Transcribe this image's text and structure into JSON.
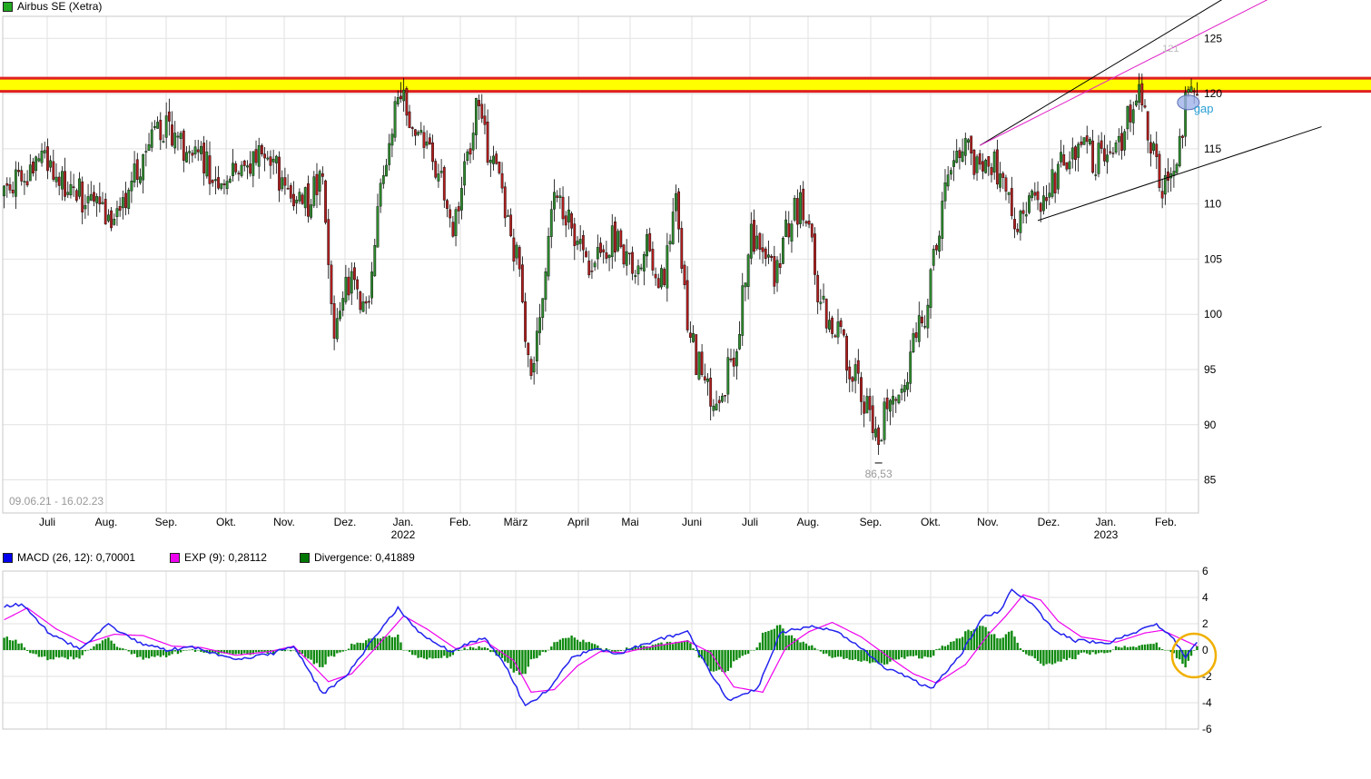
{
  "header": {
    "title": "Airbus SE (Xetra)",
    "title_color": "#22aa22"
  },
  "chart_data": [
    {
      "type": "candlestick",
      "title": "Airbus SE (Xetra)",
      "date_range": "09.06.21 - 16.02.23",
      "ylim": [
        82,
        127
      ],
      "y_ticks": [
        85,
        90,
        95,
        100,
        105,
        110,
        115,
        120,
        125
      ],
      "x_labels": [
        {
          "label": "Juli"
        },
        {
          "label": "Aug."
        },
        {
          "label": "Sep."
        },
        {
          "label": "Okt."
        },
        {
          "label": "Nov."
        },
        {
          "label": "Dez."
        },
        {
          "label": "Jan.",
          "year": "2022"
        },
        {
          "label": "Feb."
        },
        {
          "label": "März"
        },
        {
          "label": "April"
        },
        {
          "label": "Mai"
        },
        {
          "label": "Juni"
        },
        {
          "label": "Juli"
        },
        {
          "label": "Aug."
        },
        {
          "label": "Sep."
        },
        {
          "label": "Okt."
        },
        {
          "label": "Nov."
        },
        {
          "label": "Dez."
        },
        {
          "label": "Jan.",
          "year": "2023"
        },
        {
          "label": "Feb."
        }
      ],
      "grid": true,
      "resistance_zone": {
        "low": 120.2,
        "high": 121.4,
        "fill": "#ffff00",
        "edge": "#e02020"
      },
      "annotations": {
        "low_label": "86,53",
        "gap_label": "gap",
        "high_label": "121"
      },
      "approx_path": [
        [
          0,
          111
        ],
        [
          12,
          114
        ],
        [
          25,
          111
        ],
        [
          38,
          108
        ],
        [
          45,
          113
        ],
        [
          55,
          117
        ],
        [
          62,
          115
        ],
        [
          72,
          113
        ],
        [
          80,
          112
        ],
        [
          88,
          114
        ],
        [
          98,
          112
        ],
        [
          104,
          110
        ],
        [
          110,
          112
        ],
        [
          114,
          99
        ],
        [
          120,
          104
        ],
        [
          126,
          100
        ],
        [
          130,
          112
        ],
        [
          137,
          120
        ],
        [
          148,
          114
        ],
        [
          155,
          108
        ],
        [
          163,
          118
        ],
        [
          170,
          113
        ],
        [
          178,
          104
        ],
        [
          182,
          93
        ],
        [
          186,
          103
        ],
        [
          190,
          112
        ],
        [
          198,
          106
        ],
        [
          204,
          104
        ],
        [
          210,
          107
        ],
        [
          216,
          104
        ],
        [
          222,
          106
        ],
        [
          228,
          103
        ],
        [
          232,
          111
        ],
        [
          236,
          99
        ],
        [
          241,
          94
        ],
        [
          246,
          92
        ],
        [
          252,
          96
        ],
        [
          258,
          107
        ],
        [
          266,
          104
        ],
        [
          272,
          109
        ],
        [
          276,
          110
        ],
        [
          282,
          101
        ],
        [
          288,
          98
        ],
        [
          293,
          95
        ],
        [
          298,
          92
        ],
        [
          302,
          89
        ],
        [
          306,
          93
        ],
        [
          312,
          95
        ],
        [
          318,
          100
        ],
        [
          324,
          110
        ],
        [
          330,
          115
        ],
        [
          336,
          114
        ],
        [
          344,
          113
        ],
        [
          350,
          108
        ],
        [
          356,
          110
        ],
        [
          362,
          112
        ],
        [
          370,
          115
        ],
        [
          378,
          114
        ],
        [
          386,
          116
        ],
        [
          392,
          121
        ],
        [
          396,
          116
        ],
        [
          400,
          112
        ],
        [
          405,
          115
        ],
        [
          409,
          120
        ]
      ],
      "channel_lines": [
        {
          "from": [
            357,
            108.5
          ],
          "to": [
            455,
            117
          ],
          "color": "#000000"
        },
        {
          "from": [
            337,
            115.3
          ],
          "to": [
            430,
            130
          ],
          "color": "#000000"
        },
        {
          "from": [
            337,
            115.3
          ],
          "to": [
            440,
            129
          ],
          "color": "#e020c8"
        }
      ]
    },
    {
      "type": "line+bar",
      "title": "",
      "ylim": [
        -6,
        6
      ],
      "y_ticks": [
        6,
        4,
        2,
        0,
        -2,
        -4,
        -6
      ],
      "legend": [
        {
          "label": "MACD (26, 12): 0,70001",
          "color": "#0000ee"
        },
        {
          "label": "EXP (9): 0,28112",
          "color": "#ee00ee"
        },
        {
          "label": "Divergence: 0,41889",
          "color": "#007700"
        }
      ],
      "series": [
        {
          "name": "MACD (26, 12)",
          "color": "#2222ee",
          "knots": [
            [
              0,
              3.3
            ],
            [
              6,
              3.5
            ],
            [
              16,
              1.2
            ],
            [
              26,
              0.1
            ],
            [
              36,
              1.9
            ],
            [
              46,
              0.6
            ],
            [
              56,
              0.0
            ],
            [
              66,
              0.2
            ],
            [
              80,
              -0.7
            ],
            [
              92,
              -0.3
            ],
            [
              100,
              0.3
            ],
            [
              110,
              -3.3
            ],
            [
              118,
              -2.0
            ],
            [
              128,
              1.0
            ],
            [
              136,
              3.2
            ],
            [
              144,
              1.2
            ],
            [
              154,
              -0.1
            ],
            [
              166,
              1.0
            ],
            [
              174,
              -1.5
            ],
            [
              180,
              -4.3
            ],
            [
              188,
              -3.0
            ],
            [
              196,
              -0.6
            ],
            [
              204,
              0.1
            ],
            [
              212,
              -0.3
            ],
            [
              220,
              0.4
            ],
            [
              236,
              1.4
            ],
            [
              242,
              -1.0
            ],
            [
              250,
              -3.8
            ],
            [
              260,
              -3.0
            ],
            [
              268,
              1.3
            ],
            [
              278,
              1.8
            ],
            [
              286,
              1.6
            ],
            [
              294,
              0.5
            ],
            [
              304,
              -1.3
            ],
            [
              312,
              -2.0
            ],
            [
              320,
              -3.0
            ],
            [
              330,
              -0.5
            ],
            [
              338,
              2.5
            ],
            [
              344,
              3.0
            ],
            [
              348,
              4.6
            ],
            [
              356,
              3.3
            ],
            [
              362,
              1.6
            ],
            [
              370,
              0.7
            ],
            [
              382,
              0.6
            ],
            [
              390,
              1.3
            ],
            [
              398,
              2.0
            ],
            [
              404,
              0.8
            ],
            [
              408,
              -0.6
            ],
            [
              412,
              0.7
            ]
          ]
        },
        {
          "name": "EXP (9)",
          "color": "#ee00ee",
          "knots": [
            [
              0,
              2.3
            ],
            [
              8,
              3.2
            ],
            [
              18,
              1.6
            ],
            [
              28,
              0.5
            ],
            [
              38,
              1.2
            ],
            [
              48,
              1.1
            ],
            [
              58,
              0.3
            ],
            [
              68,
              0.2
            ],
            [
              80,
              -0.4
            ],
            [
              92,
              -0.1
            ],
            [
              100,
              0.3
            ],
            [
              112,
              -2.4
            ],
            [
              120,
              -1.8
            ],
            [
              128,
              0.1
            ],
            [
              138,
              2.6
            ],
            [
              146,
              1.6
            ],
            [
              156,
              0.1
            ],
            [
              166,
              0.7
            ],
            [
              176,
              -0.8
            ],
            [
              182,
              -3.2
            ],
            [
              190,
              -3.0
            ],
            [
              198,
              -1.2
            ],
            [
              206,
              -0.1
            ],
            [
              214,
              -0.2
            ],
            [
              222,
              0.2
            ],
            [
              236,
              0.7
            ],
            [
              244,
              -0.2
            ],
            [
              252,
              -2.8
            ],
            [
              262,
              -3.2
            ],
            [
              270,
              0.2
            ],
            [
              278,
              1.4
            ],
            [
              286,
              2.1
            ],
            [
              296,
              1.0
            ],
            [
              306,
              -0.6
            ],
            [
              314,
              -1.8
            ],
            [
              322,
              -2.5
            ],
            [
              332,
              -1.1
            ],
            [
              340,
              1.2
            ],
            [
              346,
              2.6
            ],
            [
              352,
              4.2
            ],
            [
              358,
              3.8
            ],
            [
              364,
              2.2
            ],
            [
              372,
              1.0
            ],
            [
              384,
              0.6
            ],
            [
              394,
              1.3
            ],
            [
              400,
              1.5
            ],
            [
              406,
              0.9
            ],
            [
              412,
              0.3
            ]
          ]
        },
        {
          "name": "Divergence",
          "color": "#007700",
          "type": "bar"
        }
      ]
    }
  ]
}
